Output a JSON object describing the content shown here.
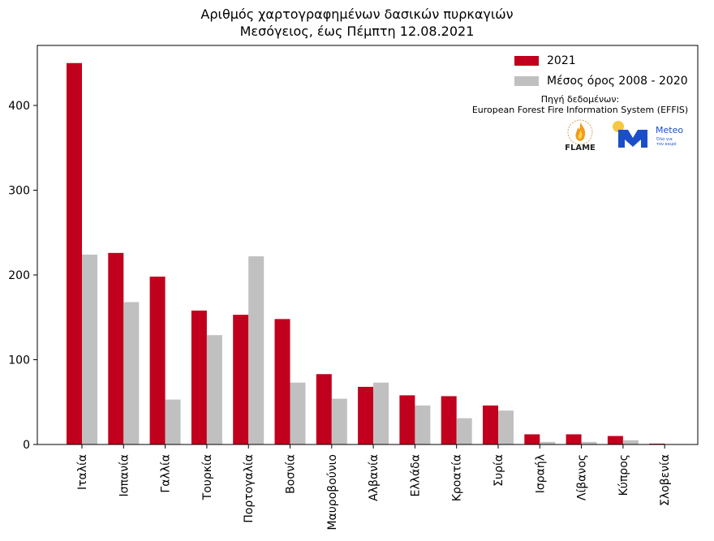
{
  "title": {
    "line1": "Αριθμός χαρτογραφημένων δασικών πυρκαγιών",
    "line2": "Μεσόγειος, έως Πέμπτη 12.08.2021"
  },
  "legend": [
    {
      "label": "2021",
      "color": "#c0001d"
    },
    {
      "label": "Μέσος όρος 2008 - 2020",
      "color": "#c0c0c0"
    }
  ],
  "source": {
    "line1": "Πηγή δεδομένων:",
    "line2": "European Forest Fire Information System (EFFIS)"
  },
  "logos": {
    "flame": {
      "icon": "flame-logo",
      "text": "FLAME"
    },
    "meteo": {
      "icon": "meteo-logo",
      "text": "Meteo",
      "tagline1": "Όλα για",
      "tagline2": "τον καιρό"
    }
  },
  "chart_data": {
    "type": "bar",
    "categories": [
      "Ιταλία",
      "Ισπανία",
      "Γαλλία",
      "Τουρκία",
      "Πορτογαλία",
      "Βοσνία",
      "Μαυροβούνιο",
      "Αλβανία",
      "Ελλάδα",
      "Κροατία",
      "Συρία",
      "Ισραήλ",
      "Λίβανος",
      "Κύπρος",
      "Σλοβενία"
    ],
    "series": [
      {
        "name": "2021",
        "color": "#c0001d",
        "values": [
          450,
          226,
          198,
          158,
          153,
          148,
          83,
          68,
          58,
          57,
          46,
          12,
          12,
          10,
          1
        ]
      },
      {
        "name": "Μέσος όρος 2008 - 2020",
        "color": "#c0c0c0",
        "values": [
          224,
          168,
          53,
          129,
          222,
          73,
          54,
          73,
          46,
          31,
          40,
          3,
          3,
          5,
          0
        ]
      }
    ],
    "yticks": [
      0,
      100,
      200,
      300,
      400
    ],
    "ylim": [
      0,
      450
    ],
    "grid": false,
    "legend_position": "top-right",
    "xlabel": "",
    "ylabel": ""
  }
}
